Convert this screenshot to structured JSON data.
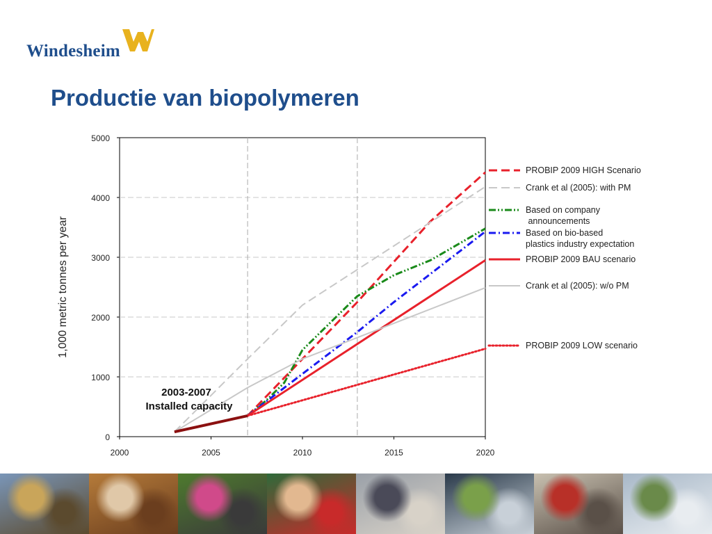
{
  "header": {
    "logo_text": "Windesheim",
    "logo_icon": "windesheim-w-mark",
    "title": "Productie van biopolymeren"
  },
  "colors": {
    "brand_blue": "#1f4e8c",
    "brand_yellow": "#e8b21e"
  },
  "chart_data": {
    "type": "line",
    "ylabel": "1,000 metric tonnes per year",
    "xlabel": "",
    "xlim": [
      2000,
      2020
    ],
    "ylim": [
      0,
      5000
    ],
    "xticks": [
      2000,
      2005,
      2010,
      2015,
      2020
    ],
    "yticks": [
      0,
      1000,
      2000,
      3000,
      4000,
      5000
    ],
    "vertical_guides": [
      2007,
      2013
    ],
    "grid": true,
    "legend_position": "right",
    "annotation": {
      "line1": "2003-2007",
      "line2": "Installed capacity"
    },
    "installed_capacity": {
      "x": [
        2003,
        2007
      ],
      "y": [
        80,
        350
      ],
      "color": "#8b1010"
    },
    "series": [
      {
        "name": "PROBIP 2009 HIGH Scenario",
        "style": "dash",
        "color": "#e8212b",
        "x": [
          2007,
          2010,
          2013,
          2017,
          2020
        ],
        "y": [
          350,
          1300,
          2250,
          3600,
          4420
        ]
      },
      {
        "name": "Crank et al (2005): with PM",
        "style": "dash",
        "color": "#c8c8c8",
        "x": [
          2003,
          2007,
          2010,
          2020
        ],
        "y": [
          80,
          1300,
          2200,
          4180
        ]
      },
      {
        "name": "Based on company announcements",
        "style": "dashdotdot",
        "color": "#1a8a1a",
        "x": [
          2007,
          2008,
          2009,
          2010,
          2011,
          2012,
          2013,
          2015,
          2017,
          2020
        ],
        "y": [
          350,
          600,
          900,
          1450,
          1750,
          2050,
          2350,
          2700,
          2950,
          3480
        ]
      },
      {
        "name": "Based on bio-based plastics industry expectation",
        "style": "dashdot",
        "color": "#1a1af0",
        "x": [
          2007,
          2010,
          2013,
          2015,
          2020
        ],
        "y": [
          350,
          1050,
          1750,
          2250,
          3430
        ]
      },
      {
        "name": "PROBIP 2009 BAU scenario",
        "style": "solid",
        "color": "#e8212b",
        "x": [
          2007,
          2020
        ],
        "y": [
          350,
          2950
        ]
      },
      {
        "name": "Crank et al (2005): w/o PM",
        "style": "solid",
        "color": "#c8c8c8",
        "x": [
          2003,
          2007,
          2010,
          2020
        ],
        "y": [
          80,
          820,
          1300,
          2490
        ]
      },
      {
        "name": "PROBIP 2009 LOW scenario",
        "style": "dot",
        "color": "#e8212b",
        "x": [
          2007,
          2020
        ],
        "y": [
          350,
          1470
        ]
      }
    ],
    "legend_entries": [
      {
        "lines": [
          "PROBIP 2009 HIGH Scenario"
        ],
        "series": 0
      },
      {
        "lines": [
          "Crank et al (2005): with PM"
        ],
        "series": 1
      },
      {
        "lines": [
          "Based on company",
          " announcements"
        ],
        "series": 2
      },
      {
        "lines": [
          "Based on bio-based",
          "plastics industry expectation"
        ],
        "series": 3
      },
      {
        "lines": [
          "PROBIP 2009 BAU scenario"
        ],
        "series": 4
      },
      {
        "lines": [
          "Crank et al (2005): w/o PM"
        ],
        "series": 5
      },
      {
        "lines": [
          "PROBIP 2009 LOW scenario"
        ],
        "series": 6
      }
    ]
  },
  "photostrip": {
    "photos": [
      {
        "name": "building-photo",
        "colors": [
          "#7a96b8",
          "#c9a55a",
          "#5b4a2e"
        ]
      },
      {
        "name": "students-writing-photo",
        "colors": [
          "#b57b3a",
          "#e0c8a8",
          "#6b3e1e"
        ]
      },
      {
        "name": "students-group-photo",
        "colors": [
          "#4e7a2e",
          "#d04a8a",
          "#3a3a3a"
        ]
      },
      {
        "name": "laughing-student-photo",
        "colors": [
          "#2e6a3a",
          "#e2b890",
          "#c82a2a"
        ]
      },
      {
        "name": "crowd-hall-photo",
        "colors": [
          "#9aa0a8",
          "#4a4a58",
          "#d8d2c8"
        ]
      },
      {
        "name": "staircase-photo",
        "colors": [
          "#2a3a4a",
          "#7aa04a",
          "#c8d0d8"
        ]
      },
      {
        "name": "lounge-photo",
        "colors": [
          "#c8c0b0",
          "#b83028",
          "#5a5048"
        ]
      },
      {
        "name": "modern-building-photo",
        "colors": [
          "#a8b8c8",
          "#6a8a4a",
          "#e8ecf0"
        ]
      }
    ]
  }
}
